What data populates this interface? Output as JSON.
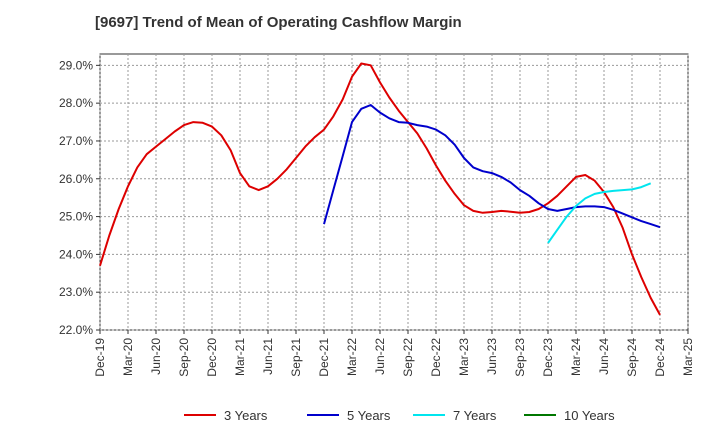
{
  "chart_data": {
    "type": "line",
    "title": "[9697]  Trend of Mean of Operating Cashflow Margin",
    "xlabel": "",
    "ylabel": "",
    "ylim": [
      22.0,
      29.3
    ],
    "grid": true,
    "legend_position": "bottom",
    "x_ticks": [
      "Dec-19",
      "Mar-20",
      "Jun-20",
      "Sep-20",
      "Dec-20",
      "Mar-21",
      "Jun-21",
      "Sep-21",
      "Dec-21",
      "Mar-22",
      "Jun-22",
      "Sep-22",
      "Dec-22",
      "Mar-23",
      "Jun-23",
      "Sep-23",
      "Dec-23",
      "Mar-24",
      "Jun-24",
      "Sep-24",
      "Dec-24",
      "Mar-25"
    ],
    "y_ticks": [
      "22.0%",
      "23.0%",
      "24.0%",
      "25.0%",
      "26.0%",
      "27.0%",
      "28.0%",
      "29.0%"
    ],
    "y_tick_values": [
      22,
      23,
      24,
      25,
      26,
      27,
      28,
      29
    ],
    "series": [
      {
        "name": "3 Years",
        "color": "#dd0000",
        "start_index": 0,
        "values": [
          23.7,
          24.5,
          25.2,
          25.8,
          26.3,
          26.65,
          26.85,
          27.05,
          27.25,
          27.42,
          27.5,
          27.48,
          27.38,
          27.15,
          26.75,
          26.15,
          25.8,
          25.7,
          25.8,
          26.0,
          26.25,
          26.55,
          26.85,
          27.1,
          27.3,
          27.65,
          28.1,
          28.7,
          29.05,
          29.0,
          28.55,
          28.15,
          27.8,
          27.5,
          27.2,
          26.8,
          26.35,
          25.95,
          25.6,
          25.3,
          25.15,
          25.1,
          25.12,
          25.15,
          25.13,
          25.1,
          25.12,
          25.2,
          25.35,
          25.55,
          25.8,
          26.05,
          26.1,
          25.95,
          25.65,
          25.25,
          24.7,
          24.0,
          23.4,
          22.85,
          22.4
        ]
      },
      {
        "name": "5 Years",
        "color": "#0000cc",
        "start_index": 24,
        "values": [
          24.8,
          25.7,
          26.6,
          27.5,
          27.85,
          27.95,
          27.75,
          27.6,
          27.5,
          27.48,
          27.42,
          27.38,
          27.3,
          27.15,
          26.9,
          26.55,
          26.3,
          26.2,
          26.15,
          26.05,
          25.9,
          25.7,
          25.55,
          25.35,
          25.2,
          25.15,
          25.2,
          25.25,
          25.27,
          25.27,
          25.25,
          25.18,
          25.08,
          24.98,
          24.88,
          24.8,
          24.72
        ]
      },
      {
        "name": "7 Years",
        "color": "#00e5ee",
        "start_index": 48,
        "values": [
          24.3,
          24.65,
          25.0,
          25.28,
          25.48,
          25.6,
          25.65,
          25.68,
          25.7,
          25.72,
          25.78,
          25.88
        ]
      },
      {
        "name": "10 Years",
        "color": "#007700",
        "start_index": 48,
        "values": []
      }
    ]
  }
}
